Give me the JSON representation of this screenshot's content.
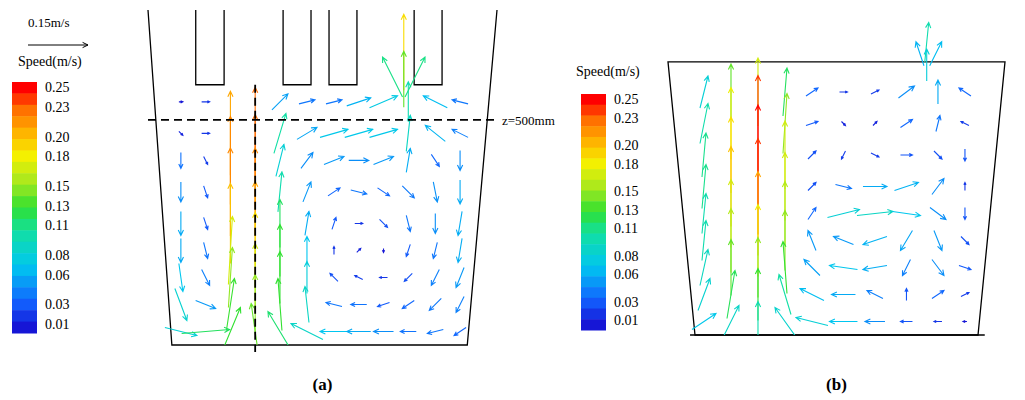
{
  "chart_data": [
    {
      "type": "quiver",
      "title": "(a)",
      "tick_labels": false,
      "grid": false,
      "xlim": [
        -53,
        722
      ],
      "ylim": [
        0,
        744
      ],
      "colorbar": {
        "title": "Speed(m/s)",
        "range": [
          0.01,
          0.25
        ],
        "ticks": [
          0.01,
          0.03,
          0.06,
          0.08,
          0.11,
          0.13,
          0.15,
          0.18,
          {
            "value": 0.2,
            "label": "0.20"
          },
          0.23,
          0.25
        ]
      },
      "reference_arrow": {
        "value": 0.15,
        "label": "0.15m/s"
      },
      "hlines": [
        {
          "value": 500,
          "label": "z=500mm"
        }
      ],
      "vlines": [
        {
          "value": 185
        }
      ],
      "x": [
        20,
        75,
        240,
        300,
        360,
        415,
        470,
        525,
        585,
        640,
        20,
        75,
        130,
        185,
        240,
        300,
        360,
        415,
        470,
        525,
        585,
        640,
        20,
        75,
        130,
        185,
        240,
        300,
        360,
        415,
        470,
        525,
        585,
        640,
        20,
        75,
        130,
        185,
        240,
        300,
        360,
        415,
        470,
        525,
        585,
        640,
        20,
        75,
        130,
        185,
        240,
        300,
        360,
        415,
        470,
        525,
        585,
        640,
        20,
        75,
        130,
        185,
        240,
        300,
        360,
        415,
        470,
        525,
        585,
        640,
        20,
        75,
        130,
        185,
        240,
        300,
        360,
        415,
        470,
        525,
        585,
        640,
        20,
        75,
        130,
        185,
        240,
        300,
        360,
        415,
        470,
        525,
        585,
        640,
        20,
        75,
        130,
        185,
        240,
        300,
        360,
        415,
        470,
        525,
        585,
        640,
        515,
        515,
        490,
        540
      ],
      "y": [
        540,
        540,
        540,
        540,
        540,
        540,
        540,
        540,
        540,
        540,
        470,
        470,
        470,
        470,
        470,
        470,
        470,
        470,
        470,
        470,
        470,
        470,
        410,
        410,
        410,
        410,
        410,
        410,
        410,
        410,
        410,
        410,
        410,
        410,
        340,
        340,
        340,
        340,
        340,
        340,
        340,
        340,
        340,
        340,
        340,
        340,
        270,
        270,
        270,
        270,
        270,
        270,
        270,
        270,
        270,
        270,
        270,
        270,
        210,
        210,
        210,
        210,
        210,
        210,
        210,
        210,
        210,
        210,
        210,
        210,
        150,
        150,
        150,
        150,
        150,
        150,
        150,
        150,
        150,
        150,
        150,
        150,
        90,
        90,
        90,
        90,
        90,
        90,
        90,
        90,
        90,
        90,
        90,
        90,
        30,
        30,
        30,
        30,
        30,
        30,
        30,
        30,
        30,
        30,
        30,
        30,
        650,
        590,
        595,
        595
      ],
      "u": [
        0.01,
        0.02,
        0.04,
        0.04,
        0.04,
        0.06,
        0.07,
        0,
        -0.06,
        -0.04,
        0.01,
        0.02,
        0,
        0,
        0.03,
        0.05,
        0.07,
        0.07,
        0.07,
        0.01,
        -0.05,
        -0.04,
        0,
        0.01,
        0,
        0,
        0.02,
        0.03,
        0.05,
        0.05,
        0.05,
        0.01,
        0.02,
        0,
        0,
        0.01,
        0,
        0,
        0.01,
        0.02,
        0.03,
        0.04,
        0.03,
        0.03,
        0.01,
        0,
        0,
        0.01,
        0,
        0,
        0,
        0.01,
        0.01,
        0.02,
        0.02,
        0.01,
        0,
        -0.01,
        0,
        0.01,
        0.01,
        0,
        0,
        0,
        0,
        0.01,
        0,
        -0.01,
        -0.01,
        -0.01,
        0.01,
        0.02,
        0.01,
        0,
        0,
        0,
        -0.02,
        -0.02,
        -0.02,
        -0.02,
        -0.02,
        -0.02,
        0.03,
        0.05,
        0.02,
        0,
        -0.01,
        -0.01,
        -0.04,
        -0.04,
        -0.03,
        -0.03,
        -0.03,
        -0.02,
        0.08,
        0.12,
        0.05,
        -0.02,
        -0.06,
        -0.08,
        -0.07,
        -0.06,
        -0.05,
        -0.04,
        -0.04,
        -0.03,
        0,
        0,
        -0.05,
        0.05
      ],
      "v": [
        0,
        0,
        0.04,
        0.01,
        0.01,
        0.02,
        0.03,
        0.1,
        0.03,
        0.01,
        -0.01,
        0,
        0.21,
        0.23,
        0.1,
        0.03,
        0.02,
        0.02,
        0.02,
        0.09,
        0.04,
        0.02,
        -0.04,
        -0.02,
        0.22,
        0.23,
        0.08,
        0.04,
        0.02,
        0,
        0.02,
        0.06,
        -0.03,
        -0.05,
        -0.05,
        -0.03,
        0.22,
        0.22,
        0.1,
        0.05,
        0.02,
        -0.01,
        -0.02,
        -0.03,
        -0.05,
        -0.06,
        -0.06,
        -0.03,
        0.2,
        0.21,
        0.12,
        0.06,
        0.03,
        0,
        -0.02,
        -0.04,
        -0.05,
        -0.06,
        -0.06,
        -0.04,
        0.17,
        0.19,
        0.13,
        0.07,
        0.02,
        0.01,
        -0.01,
        -0.03,
        -0.04,
        -0.06,
        -0.07,
        -0.04,
        0.15,
        0.17,
        0.13,
        0.08,
        0.02,
        0.01,
        0,
        -0.02,
        -0.04,
        -0.05,
        -0.08,
        -0.02,
        0.13,
        0.15,
        0.13,
        0.09,
        0.01,
        0,
        -0.01,
        -0.02,
        -0.03,
        -0.04,
        -0.02,
        0.01,
        0.12,
        0.14,
        0.1,
        0.04,
        0,
        0,
        0,
        0,
        -0.01,
        -0.02,
        0.19,
        0.14,
        0.1,
        0.1
      ]
    },
    {
      "type": "quiver",
      "title": "(b)",
      "tick_labels": false,
      "grid": false,
      "xlim": [
        -60,
        689
      ],
      "ylim": [
        0,
        700
      ],
      "colorbar": {
        "title": "Speed(m/s)",
        "range": [
          0.01,
          0.25
        ],
        "ticks": [
          0.01,
          0.03,
          0.06,
          0.08,
          0.11,
          0.13,
          0.15,
          0.18,
          {
            "value": 0.2,
            "label": "0.20"
          },
          0.23,
          0.25
        ]
      },
      "x": [
        20,
        80,
        140,
        200,
        260,
        330,
        400,
        470,
        540,
        600,
        20,
        80,
        140,
        200,
        260,
        330,
        400,
        470,
        540,
        600,
        20,
        80,
        140,
        200,
        260,
        330,
        400,
        470,
        540,
        600,
        20,
        80,
        140,
        200,
        260,
        330,
        400,
        470,
        540,
        600,
        20,
        80,
        140,
        200,
        260,
        330,
        400,
        470,
        540,
        600,
        20,
        80,
        140,
        200,
        260,
        330,
        400,
        470,
        540,
        600,
        20,
        80,
        140,
        200,
        260,
        330,
        400,
        470,
        540,
        600,
        20,
        80,
        140,
        200,
        260,
        330,
        400,
        470,
        540,
        600,
        20,
        80,
        140,
        200,
        260,
        330,
        400,
        470,
        540,
        600,
        515,
        500,
        535,
        515
      ],
      "y": [
        540,
        540,
        540,
        540,
        540,
        540,
        540,
        540,
        540,
        540,
        470,
        470,
        470,
        470,
        470,
        470,
        470,
        470,
        470,
        470,
        400,
        400,
        400,
        400,
        400,
        400,
        400,
        400,
        400,
        400,
        330,
        330,
        330,
        330,
        330,
        330,
        330,
        330,
        330,
        330,
        270,
        270,
        270,
        270,
        270,
        270,
        270,
        270,
        270,
        270,
        210,
        210,
        210,
        210,
        210,
        210,
        210,
        210,
        210,
        210,
        150,
        150,
        150,
        150,
        150,
        150,
        150,
        150,
        150,
        150,
        90,
        90,
        90,
        90,
        90,
        90,
        90,
        90,
        90,
        90,
        30,
        30,
        30,
        30,
        30,
        30,
        30,
        30,
        30,
        30,
        650,
        625,
        625,
        600
      ],
      "u": [
        0.02,
        0,
        0,
        0.01,
        0.03,
        0.02,
        0.02,
        0.04,
        0,
        -0.03,
        0.02,
        0,
        0,
        0.01,
        0.03,
        0.01,
        0.01,
        0.03,
        0.01,
        -0.02,
        0.01,
        0,
        0,
        0,
        0.02,
        -0.01,
        0.02,
        0.03,
        0.02,
        0,
        0.01,
        0,
        0,
        0,
        0.02,
        0.04,
        0.06,
        0.06,
        0.03,
        0,
        0.01,
        0,
        0,
        0,
        0.02,
        0.08,
        0.09,
        0.07,
        0.04,
        0,
        0.01,
        0,
        0,
        0,
        -0.02,
        -0.05,
        -0.06,
        -0.03,
        0.02,
        0.02,
        0.02,
        0,
        0,
        -0.01,
        -0.04,
        -0.07,
        -0.06,
        -0.02,
        0.03,
        0.03,
        0.03,
        0.02,
        0,
        -0.03,
        -0.06,
        -0.06,
        -0.04,
        0,
        0.03,
        0.02,
        0.06,
        0.04,
        0,
        -0.05,
        -0.08,
        -0.07,
        -0.05,
        -0.03,
        -0.02,
        -0.01,
        0.01,
        -0.02,
        0.03,
        0
      ],
      "v": [
        0.08,
        0.14,
        0.17,
        0.12,
        0.02,
        0,
        0.01,
        0.03,
        0.06,
        0.02,
        0.1,
        0.18,
        0.24,
        0.15,
        0.01,
        -0.01,
        0.01,
        0.02,
        0.04,
        0.01,
        0.11,
        0.19,
        0.25,
        0.17,
        0.02,
        -0.02,
        -0.01,
        0,
        -0.02,
        -0.03,
        0.11,
        0.2,
        0.24,
        0.17,
        0.02,
        -0.01,
        0,
        0.02,
        0.04,
        0.02,
        0.1,
        0.17,
        0.21,
        0.16,
        0.03,
        0.02,
        0.01,
        -0.01,
        -0.03,
        -0.03,
        0.1,
        0.16,
        0.18,
        0.15,
        0.05,
        0.02,
        -0.02,
        -0.05,
        -0.05,
        -0.02,
        0.09,
        0.14,
        0.15,
        0.13,
        0.04,
        0.01,
        -0.01,
        -0.04,
        -0.04,
        -0.01,
        0.08,
        0.12,
        0.13,
        0.1,
        0.03,
        0,
        0.02,
        0.03,
        0.02,
        0.01,
        0.04,
        0.08,
        0.1,
        0.07,
        0.02,
        0,
        0,
        0,
        0,
        0,
        0.1,
        0.06,
        0.06,
        0.08
      ]
    }
  ]
}
